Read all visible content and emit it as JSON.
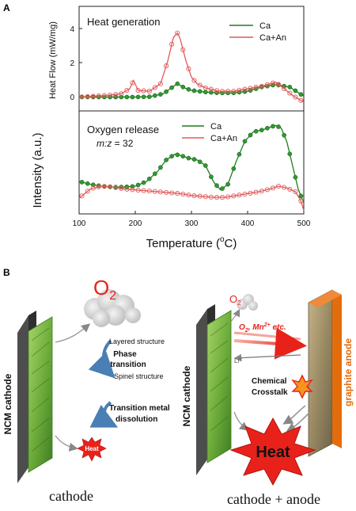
{
  "colors": {
    "ca": "#1e7d1e",
    "ca_marker": "#2e9a2e",
    "ca_an": "#e05a5a",
    "heat_red": "#e8221b",
    "graphite_orange": "#e46c0a",
    "electrode_green": "#8cc24e"
  },
  "panel_a": {
    "letter": "A",
    "xlabel": "Temperature (°C)",
    "xlabel_main": "Temperature (",
    "xlabel_sup": "o",
    "xlabel_unit": "C)",
    "x_ticks": [
      "100",
      "200",
      "300",
      "400",
      "500"
    ],
    "heat": {
      "annotation": "Heat generation",
      "ylabel": "Heat Flow (mW/mg)",
      "y_ticks": [
        "0",
        "2",
        "4"
      ],
      "legend": [
        "Ca",
        "Ca+An"
      ]
    },
    "oxygen": {
      "annotation": "Oxygen release",
      "annotation_mz": "m:z = 32",
      "mz_italic": "m:z",
      "mz_rest": " = 32",
      "ylabel": "Intensity (a.u.)",
      "legend": [
        "Ca",
        "Ca+An"
      ]
    }
  },
  "chart_data": [
    {
      "type": "line",
      "name": "Heat generation",
      "xlabel": "Temperature (°C)",
      "ylabel": "Heat Flow (mW/mg)",
      "xlim": [
        100,
        500
      ],
      "ylim": [
        -0.5,
        4.6
      ],
      "series": [
        {
          "name": "Ca",
          "x": [
            100,
            125,
            150,
            175,
            200,
            225,
            250,
            262,
            275,
            288,
            300,
            325,
            350,
            375,
            400,
            425,
            450,
            475,
            500
          ],
          "y": [
            0,
            0,
            0,
            0,
            0,
            0.02,
            0.2,
            0.5,
            0.8,
            0.55,
            0.4,
            0.3,
            0.25,
            0.25,
            0.35,
            0.6,
            0.75,
            0.6,
            0.05
          ]
        },
        {
          "name": "Ca+An",
          "x": [
            100,
            125,
            150,
            175,
            190,
            197,
            205,
            225,
            245,
            258,
            268,
            275,
            280,
            290,
            300,
            310,
            325,
            350,
            375,
            400,
            425,
            450,
            465,
            480,
            500
          ],
          "y": [
            0,
            0.05,
            0.1,
            0.2,
            0.5,
            1.0,
            0.4,
            0.35,
            0.8,
            2.2,
            3.6,
            3.85,
            3.5,
            2.2,
            1.2,
            0.8,
            0.55,
            0.35,
            0.35,
            0.5,
            0.65,
            0.9,
            0.5,
            0.1,
            -0.3
          ]
        }
      ]
    },
    {
      "type": "line",
      "name": "Oxygen release",
      "xlabel": "Temperature (°C)",
      "ylabel": "Intensity (a.u.)",
      "xlim": [
        100,
        500
      ],
      "ylim": [
        0,
        1
      ],
      "series": [
        {
          "name": "Ca",
          "x": [
            100,
            120,
            140,
            160,
            180,
            200,
            220,
            240,
            255,
            270,
            280,
            295,
            310,
            325,
            340,
            352,
            365,
            380,
            395,
            410,
            425,
            440,
            450,
            460,
            470,
            480,
            490,
            500
          ],
          "y": [
            0.33,
            0.3,
            0.28,
            0.27,
            0.27,
            0.28,
            0.33,
            0.44,
            0.56,
            0.62,
            0.61,
            0.58,
            0.56,
            0.5,
            0.32,
            0.24,
            0.3,
            0.55,
            0.76,
            0.86,
            0.88,
            0.91,
            0.93,
            0.9,
            0.75,
            0.5,
            0.25,
            0.1
          ]
        },
        {
          "name": "Ca+An",
          "x": [
            100,
            120,
            140,
            160,
            180,
            200,
            220,
            240,
            260,
            280,
            300,
            320,
            340,
            360,
            380,
            400,
            420,
            440,
            455,
            470,
            485,
            495,
            500
          ],
          "y": [
            0.15,
            0.25,
            0.28,
            0.27,
            0.25,
            0.24,
            0.23,
            0.22,
            0.21,
            0.2,
            0.18,
            0.17,
            0.16,
            0.16,
            0.18,
            0.2,
            0.22,
            0.25,
            0.28,
            0.26,
            0.22,
            0.12,
            0.02
          ]
        }
      ]
    }
  ],
  "panel_b": {
    "letter": "B",
    "left": {
      "o2": "O",
      "o2_sub": "2",
      "step1": "Layered structure",
      "step2a": "Phase",
      "step2b": "transition",
      "step3": "Spinel structure",
      "step4a": "Transition metal",
      "step4b": "dissolution",
      "heat": "Heat",
      "cathode_label": "NCM cathode",
      "caption": "cathode"
    },
    "right": {
      "o2": "O",
      "o2_sub": "2",
      "flux_o2": "O",
      "flux_o2_sub": "2",
      "flux_sep": ",  ",
      "flux_mn": "Mn",
      "flux_mn_sup": "2+",
      "flux_etc": " etc.",
      "li": "Li",
      "li_sup": "+",
      "crosstalk_a": "Chemical",
      "crosstalk_b": "Crosstalk",
      "heat": "Heat",
      "cathode_label": "NCM cathode",
      "anode_label": "graphite anode",
      "caption": "cathode + anode"
    }
  }
}
